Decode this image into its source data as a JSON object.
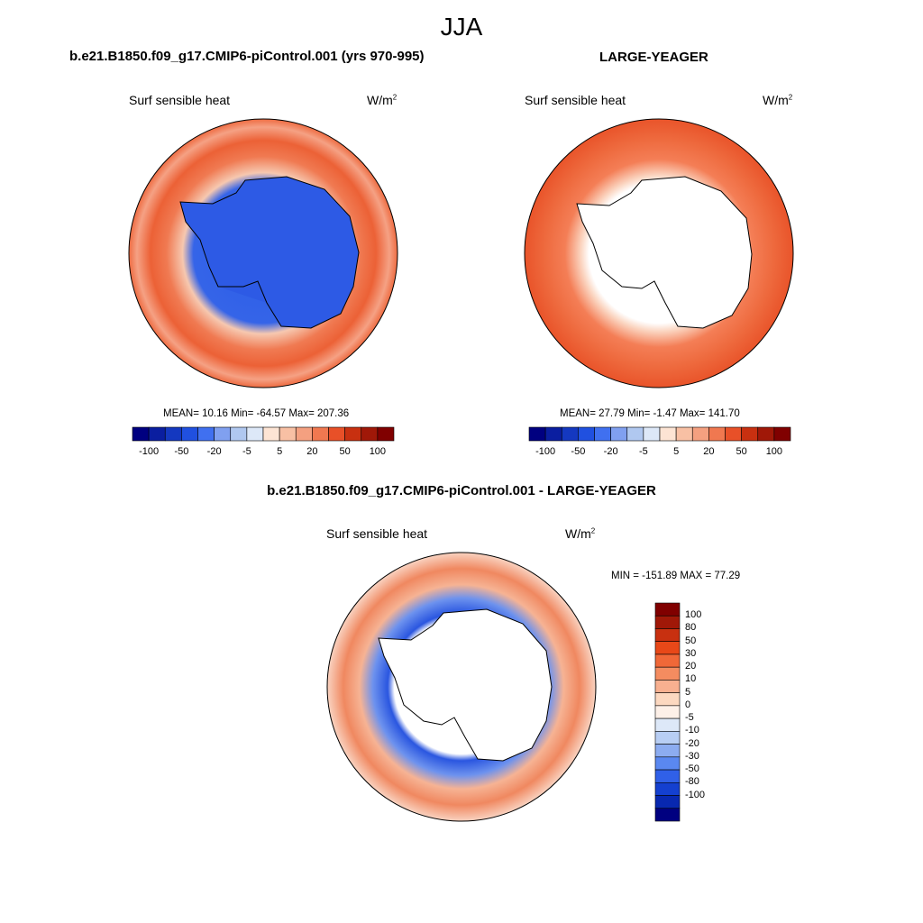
{
  "figure": {
    "season": "JJA",
    "left_title": "b.e21.B1850.f09_g17.CMIP6-piControl.001 (yrs 970-995)",
    "right_title": "LARGE-YEAGER",
    "diff_title": "b.e21.B1850.f09_g17.CMIP6-piControl.001 - LARGE-YEAGER"
  },
  "panels": {
    "left": {
      "variable": "Surf sensible heat",
      "units_base": "W/m",
      "units_exp": "2",
      "stats": "MEAN=  10.16  Min= -64.57  Max= 207.36"
    },
    "right": {
      "variable": "Surf sensible heat",
      "units_base": "W/m",
      "units_exp": "2",
      "stats": "MEAN=  27.79  Min=  -1.47  Max= 141.70"
    },
    "diff": {
      "variable": "Surf sensible heat",
      "units_base": "W/m",
      "units_exp": "2",
      "stats": "MIN = -151.89 MAX =  77.29"
    }
  },
  "colorbars": {
    "main": {
      "colors": [
        "#000080",
        "#0a1ea0",
        "#1438c0",
        "#2050e0",
        "#4070f0",
        "#80a0f0",
        "#b0c8f0",
        "#dde8f8",
        "#fde4d4",
        "#f8c0a4",
        "#f4a080",
        "#f07850",
        "#e85028",
        "#c83010",
        "#a01808",
        "#800000"
      ],
      "tick_labels": [
        "-100",
        "-50",
        "-20",
        "-5",
        "5",
        "20",
        "50",
        "100"
      ]
    },
    "diff": {
      "colors": [
        "#800000",
        "#a01808",
        "#c83010",
        "#e84818",
        "#f06838",
        "#f48c60",
        "#f8b090",
        "#fcd8c0",
        "#fdf0e8",
        "#dde8f8",
        "#b8cef4",
        "#8cacf0",
        "#5a88f0",
        "#3060e8",
        "#1440d0",
        "#0828b0",
        "#000080"
      ],
      "tick_labels": [
        "100",
        "80",
        "50",
        "30",
        "20",
        "10",
        "5",
        "0",
        "-5",
        "-10",
        "-20",
        "-30",
        "-50",
        "-80",
        "-100"
      ]
    }
  }
}
